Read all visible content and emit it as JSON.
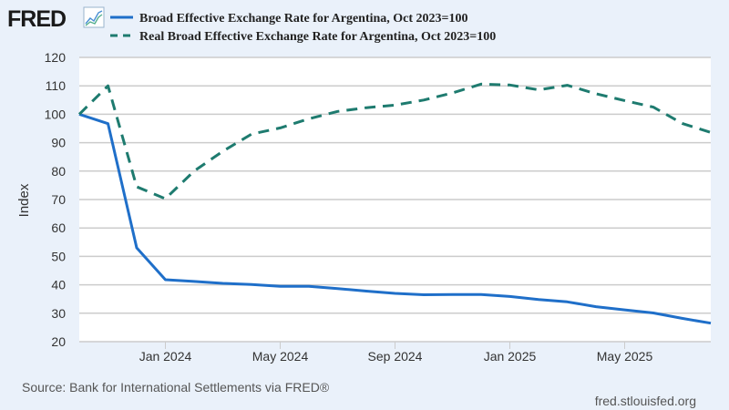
{
  "brand": {
    "logo_text": "FRED",
    "logo_icon": "line-chart-icon"
  },
  "chart_data": {
    "type": "line",
    "title": "",
    "xlabel": "",
    "ylabel": "Index",
    "ylim": [
      20,
      120
    ],
    "yticks": [
      20,
      30,
      40,
      50,
      60,
      70,
      80,
      90,
      100,
      110,
      120
    ],
    "grid": true,
    "legend_position": "top",
    "x": [
      "2023-10",
      "2023-11",
      "2023-12",
      "2024-01",
      "2024-02",
      "2024-03",
      "2024-04",
      "2024-05",
      "2024-06",
      "2024-07",
      "2024-08",
      "2024-09",
      "2024-10",
      "2024-11",
      "2024-12",
      "2025-01",
      "2025-02",
      "2025-03",
      "2025-04",
      "2025-05",
      "2025-06",
      "2025-07",
      "2025-08"
    ],
    "xticks": [
      {
        "index": 3,
        "label": "Jan 2024"
      },
      {
        "index": 7,
        "label": "May 2024"
      },
      {
        "index": 11,
        "label": "Sep 2024"
      },
      {
        "index": 15,
        "label": "Jan 2025"
      },
      {
        "index": 19,
        "label": "May 2025"
      }
    ],
    "series": [
      {
        "name": "Broad Effective Exchange Rate for Argentina, Oct 2023=100",
        "color": "#1f6fc9",
        "style": "solid",
        "values": [
          100.0,
          96.7,
          53.0,
          41.8,
          41.2,
          40.5,
          40.1,
          39.5,
          39.5,
          38.7,
          37.8,
          37.0,
          36.5,
          36.6,
          36.6,
          35.9,
          34.8,
          34.0,
          32.3,
          31.2,
          30.1,
          28.2,
          26.5
        ]
      },
      {
        "name": "Real Broad Effective Exchange Rate for Argentina, Oct 2023=100",
        "color": "#1e7b6f",
        "style": "dashed",
        "values": [
          100.0,
          110.0,
          74.5,
          70.3,
          80.0,
          87.0,
          93.0,
          95.2,
          98.4,
          101.0,
          102.3,
          103.2,
          105.0,
          107.5,
          110.6,
          110.3,
          108.6,
          110.2,
          107.2,
          104.8,
          102.5,
          96.8,
          93.6
        ]
      }
    ]
  },
  "footer": {
    "source": "Source: Bank for International Settlements via FRED®",
    "site": "fred.stlouisfed.org"
  }
}
